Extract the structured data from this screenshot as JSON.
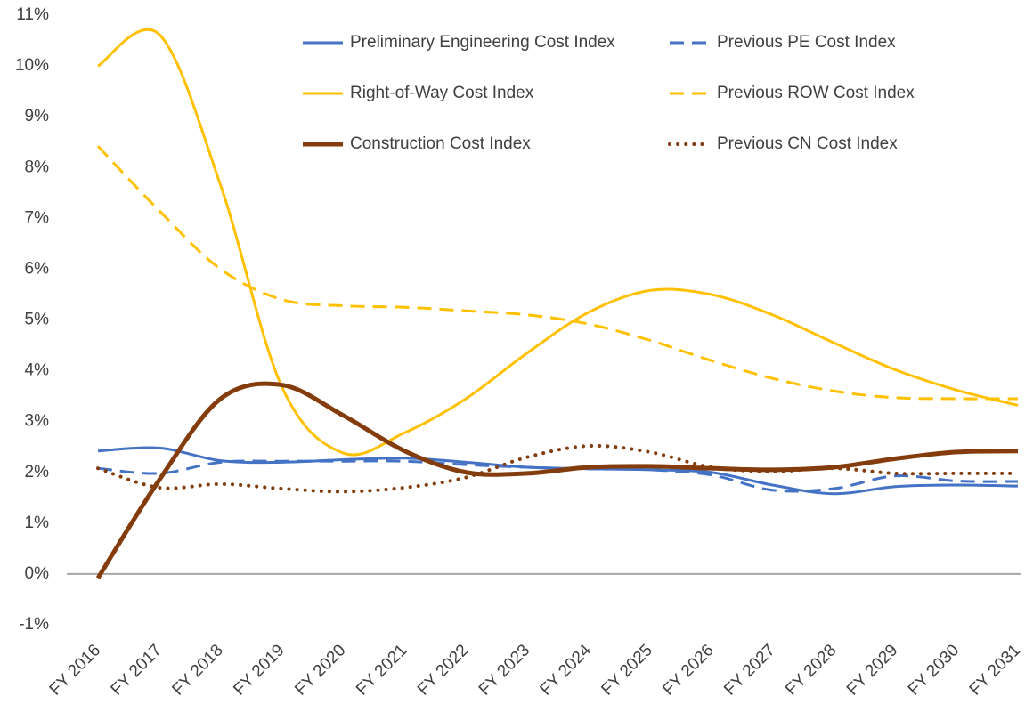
{
  "chart_data": {
    "type": "line",
    "categories": [
      "FY 2016",
      "FY 2017",
      "FY 2018",
      "FY 2019",
      "FY 2020",
      "FY 2021",
      "FY 2022",
      "FY 2023",
      "FY 2024",
      "FY 2025",
      "FY 2026",
      "FY 2027",
      "FY 2028",
      "FY 2029",
      "FY 2030",
      "FY 2031"
    ],
    "series": [
      {
        "name": "Preliminary Engineering Cost Index",
        "color": "#4472c4",
        "dash": "solid",
        "width": 3,
        "values": [
          2.42,
          2.48,
          2.23,
          2.2,
          2.25,
          2.28,
          2.2,
          2.1,
          2.07,
          2.05,
          2.0,
          1.75,
          1.58,
          1.72,
          1.75,
          1.73
        ]
      },
      {
        "name": "Previous PE Cost Index",
        "color": "#4472c4",
        "dash": "dashed",
        "width": 3,
        "values": [
          2.08,
          1.98,
          2.2,
          2.22,
          2.22,
          2.22,
          2.15,
          2.1,
          2.07,
          2.05,
          1.95,
          1.65,
          1.68,
          1.93,
          1.83,
          1.82
        ]
      },
      {
        "name": "Right-of-Way Cost Index",
        "color": "#ffc000",
        "dash": "solid",
        "width": 3,
        "values": [
          10.0,
          10.62,
          7.65,
          3.68,
          2.38,
          2.78,
          3.45,
          4.35,
          5.15,
          5.58,
          5.5,
          5.1,
          4.55,
          4.02,
          3.62,
          3.32
        ]
      },
      {
        "name": "Previous ROW Cost Index",
        "color": "#ffc000",
        "dash": "dashed",
        "width": 3,
        "values": [
          8.42,
          7.15,
          6.0,
          5.4,
          5.28,
          5.25,
          5.18,
          5.1,
          4.92,
          4.6,
          4.2,
          3.85,
          3.6,
          3.47,
          3.45,
          3.45
        ]
      },
      {
        "name": "Construction Cost Index",
        "color": "#843c0c",
        "dash": "solid",
        "width": 5,
        "values": [
          -0.08,
          1.85,
          3.45,
          3.72,
          3.12,
          2.42,
          2.0,
          1.98,
          2.1,
          2.12,
          2.08,
          2.05,
          2.1,
          2.27,
          2.4,
          2.42
        ]
      },
      {
        "name": "Previous CN Cost Index",
        "color": "#843c0c",
        "dash": "dotted",
        "width": 4,
        "values": [
          2.08,
          1.7,
          1.77,
          1.68,
          1.62,
          1.7,
          1.9,
          2.3,
          2.52,
          2.4,
          2.1,
          2.02,
          2.08,
          1.98,
          1.98,
          1.98
        ]
      }
    ],
    "ylim": [
      -1,
      11
    ],
    "yticks": [
      {
        "value": -1,
        "label": "-1%"
      },
      {
        "value": 0,
        "label": "0%"
      },
      {
        "value": 1,
        "label": "1%"
      },
      {
        "value": 2,
        "label": "2%"
      },
      {
        "value": 3,
        "label": "3%"
      },
      {
        "value": 4,
        "label": "4%"
      },
      {
        "value": 5,
        "label": "5%"
      },
      {
        "value": 6,
        "label": "6%"
      },
      {
        "value": 7,
        "label": "7%"
      },
      {
        "value": 8,
        "label": "8%"
      },
      {
        "value": 9,
        "label": "9%"
      },
      {
        "value": 10,
        "label": "10%"
      },
      {
        "value": 11,
        "label": "11%"
      }
    ],
    "grid": false,
    "smooth": true,
    "legend": "top"
  }
}
